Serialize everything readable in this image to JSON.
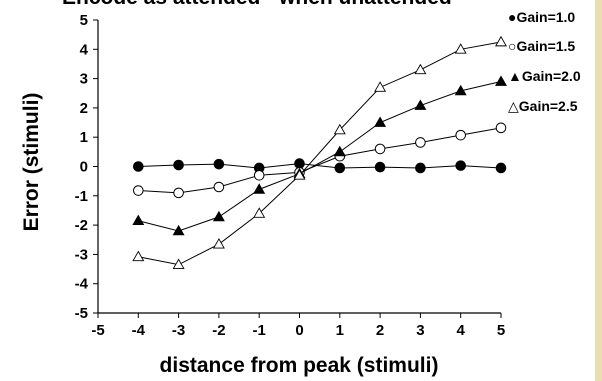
{
  "chart_data": {
    "type": "line",
    "title": "Encode as attended - when unattended",
    "xlabel": "distance from peak (stimuli)",
    "ylabel": "Error (stimuli)",
    "xlim": [
      -5,
      5
    ],
    "ylim": [
      -5,
      5
    ],
    "x_ticks": [
      -5,
      -4,
      -3,
      -2,
      -1,
      0,
      1,
      2,
      3,
      4,
      5
    ],
    "y_ticks": [
      -5,
      -4,
      -3,
      -2,
      -1,
      0,
      1,
      2,
      3,
      4,
      5
    ],
    "x": [
      -4,
      -3,
      -2,
      -1,
      0,
      1,
      2,
      3,
      4,
      5
    ],
    "grid": false,
    "legend_position": "right",
    "series": [
      {
        "name": "Gain=1.0",
        "marker": "filled-circle",
        "legend_symbol": "●",
        "values": [
          0.0,
          0.05,
          0.08,
          -0.05,
          0.1,
          -0.05,
          -0.02,
          -0.05,
          0.03,
          -0.05
        ]
      },
      {
        "name": "Gain=1.5",
        "marker": "open-circle",
        "legend_symbol": "○",
        "values": [
          -0.82,
          -0.9,
          -0.7,
          -0.3,
          -0.2,
          0.35,
          0.6,
          0.82,
          1.07,
          1.32
        ]
      },
      {
        "name": "Gain=2.0",
        "marker": "filled-triangle",
        "legend_symbol": "▲",
        "values": [
          -1.85,
          -2.2,
          -1.72,
          -0.78,
          -0.25,
          0.5,
          1.5,
          2.08,
          2.58,
          2.9
        ]
      },
      {
        "name": "Gain=2.5",
        "marker": "open-triangle",
        "legend_symbol": "△",
        "values": [
          -3.08,
          -3.35,
          -2.65,
          -1.6,
          -0.3,
          1.25,
          2.7,
          3.3,
          4.0,
          4.25
        ]
      }
    ]
  }
}
